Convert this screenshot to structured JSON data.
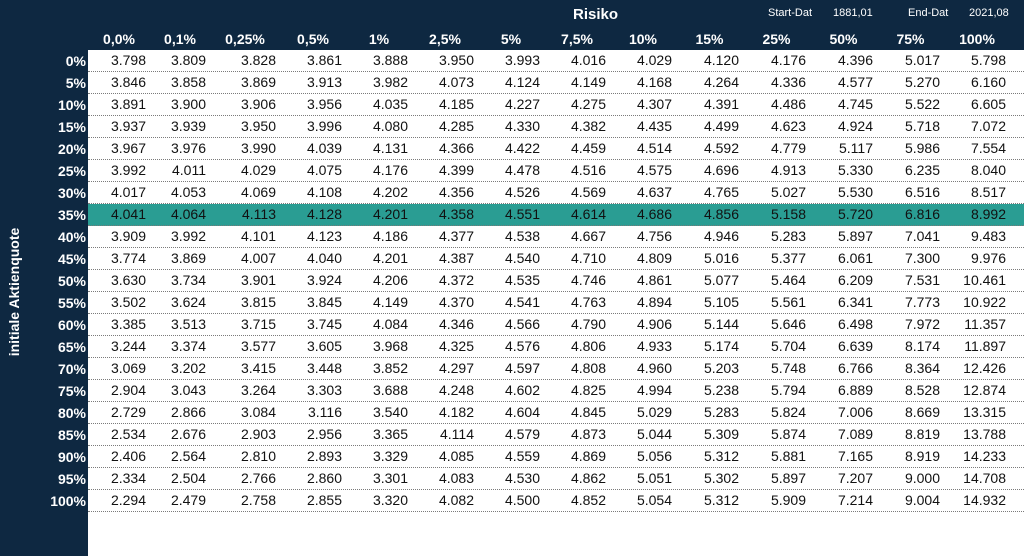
{
  "header": {
    "risk_title": "Risiko",
    "start_label": "Start-Dat",
    "start_value": "1881,01",
    "end_label": "End-Dat",
    "end_value": "2021,08"
  },
  "side_label": "initiale Aktienquote",
  "highlight_row": "35%",
  "colors": {
    "background": "#0e2841",
    "highlight": "#2a9d93",
    "cell": "#ffffff"
  },
  "columns": [
    "0,0%",
    "0,1%",
    "0,25%",
    "0,5%",
    "1%",
    "2,5%",
    "5%",
    "7,5%",
    "10%",
    "15%",
    "25%",
    "50%",
    "75%",
    "100%"
  ],
  "rows": [
    {
      "label": "0%",
      "values": [
        "3.798",
        "3.809",
        "3.828",
        "3.861",
        "3.888",
        "3.950",
        "3.993",
        "4.016",
        "4.029",
        "4.120",
        "4.176",
        "4.396",
        "5.017",
        "5.798"
      ]
    },
    {
      "label": "5%",
      "values": [
        "3.846",
        "3.858",
        "3.869",
        "3.913",
        "3.982",
        "4.073",
        "4.124",
        "4.149",
        "4.168",
        "4.264",
        "4.336",
        "4.577",
        "5.270",
        "6.160"
      ]
    },
    {
      "label": "10%",
      "values": [
        "3.891",
        "3.900",
        "3.906",
        "3.956",
        "4.035",
        "4.185",
        "4.227",
        "4.275",
        "4.307",
        "4.391",
        "4.486",
        "4.745",
        "5.522",
        "6.605"
      ]
    },
    {
      "label": "15%",
      "values": [
        "3.937",
        "3.939",
        "3.950",
        "3.996",
        "4.080",
        "4.285",
        "4.330",
        "4.382",
        "4.435",
        "4.499",
        "4.623",
        "4.924",
        "5.718",
        "7.072"
      ]
    },
    {
      "label": "20%",
      "values": [
        "3.967",
        "3.976",
        "3.990",
        "4.039",
        "4.131",
        "4.366",
        "4.422",
        "4.459",
        "4.514",
        "4.592",
        "4.779",
        "5.117",
        "5.986",
        "7.554"
      ]
    },
    {
      "label": "25%",
      "values": [
        "3.992",
        "4.011",
        "4.029",
        "4.075",
        "4.176",
        "4.399",
        "4.478",
        "4.516",
        "4.575",
        "4.696",
        "4.913",
        "5.330",
        "6.235",
        "8.040"
      ]
    },
    {
      "label": "30%",
      "values": [
        "4.017",
        "4.053",
        "4.069",
        "4.108",
        "4.202",
        "4.356",
        "4.526",
        "4.569",
        "4.637",
        "4.765",
        "5.027",
        "5.530",
        "6.516",
        "8.517"
      ]
    },
    {
      "label": "35%",
      "values": [
        "4.041",
        "4.064",
        "4.113",
        "4.128",
        "4.201",
        "4.358",
        "4.551",
        "4.614",
        "4.686",
        "4.856",
        "5.158",
        "5.720",
        "6.816",
        "8.992"
      ]
    },
    {
      "label": "40%",
      "values": [
        "3.909",
        "3.992",
        "4.101",
        "4.123",
        "4.186",
        "4.377",
        "4.538",
        "4.667",
        "4.756",
        "4.946",
        "5.283",
        "5.897",
        "7.041",
        "9.483"
      ]
    },
    {
      "label": "45%",
      "values": [
        "3.774",
        "3.869",
        "4.007",
        "4.040",
        "4.201",
        "4.387",
        "4.540",
        "4.710",
        "4.809",
        "5.016",
        "5.377",
        "6.061",
        "7.300",
        "9.976"
      ]
    },
    {
      "label": "50%",
      "values": [
        "3.630",
        "3.734",
        "3.901",
        "3.924",
        "4.206",
        "4.372",
        "4.535",
        "4.746",
        "4.861",
        "5.077",
        "5.464",
        "6.209",
        "7.531",
        "10.461"
      ]
    },
    {
      "label": "55%",
      "values": [
        "3.502",
        "3.624",
        "3.815",
        "3.845",
        "4.149",
        "4.370",
        "4.541",
        "4.763",
        "4.894",
        "5.105",
        "5.561",
        "6.341",
        "7.773",
        "10.922"
      ]
    },
    {
      "label": "60%",
      "values": [
        "3.385",
        "3.513",
        "3.715",
        "3.745",
        "4.084",
        "4.346",
        "4.566",
        "4.790",
        "4.906",
        "5.144",
        "5.646",
        "6.498",
        "7.972",
        "11.357"
      ]
    },
    {
      "label": "65%",
      "values": [
        "3.244",
        "3.374",
        "3.577",
        "3.605",
        "3.968",
        "4.325",
        "4.576",
        "4.806",
        "4.933",
        "5.174",
        "5.704",
        "6.639",
        "8.174",
        "11.897"
      ]
    },
    {
      "label": "70%",
      "values": [
        "3.069",
        "3.202",
        "3.415",
        "3.448",
        "3.852",
        "4.297",
        "4.597",
        "4.808",
        "4.960",
        "5.203",
        "5.748",
        "6.766",
        "8.364",
        "12.426"
      ]
    },
    {
      "label": "75%",
      "values": [
        "2.904",
        "3.043",
        "3.264",
        "3.303",
        "3.688",
        "4.248",
        "4.602",
        "4.825",
        "4.994",
        "5.238",
        "5.794",
        "6.889",
        "8.528",
        "12.874"
      ]
    },
    {
      "label": "80%",
      "values": [
        "2.729",
        "2.866",
        "3.084",
        "3.116",
        "3.540",
        "4.182",
        "4.604",
        "4.845",
        "5.029",
        "5.283",
        "5.824",
        "7.006",
        "8.669",
        "13.315"
      ]
    },
    {
      "label": "85%",
      "values": [
        "2.534",
        "2.676",
        "2.903",
        "2.956",
        "3.365",
        "4.114",
        "4.579",
        "4.873",
        "5.044",
        "5.309",
        "5.874",
        "7.089",
        "8.819",
        "13.788"
      ]
    },
    {
      "label": "90%",
      "values": [
        "2.406",
        "2.564",
        "2.810",
        "2.893",
        "3.329",
        "4.085",
        "4.559",
        "4.869",
        "5.056",
        "5.312",
        "5.881",
        "7.165",
        "8.919",
        "14.233"
      ]
    },
    {
      "label": "95%",
      "values": [
        "2.334",
        "2.504",
        "2.766",
        "2.860",
        "3.301",
        "4.083",
        "4.530",
        "4.862",
        "5.051",
        "5.302",
        "5.897",
        "7.207",
        "9.000",
        "14.708"
      ]
    },
    {
      "label": "100%",
      "values": [
        "2.294",
        "2.479",
        "2.758",
        "2.855",
        "3.320",
        "4.082",
        "4.500",
        "4.852",
        "5.054",
        "5.312",
        "5.909",
        "7.214",
        "9.004",
        "14.932"
      ]
    }
  ]
}
